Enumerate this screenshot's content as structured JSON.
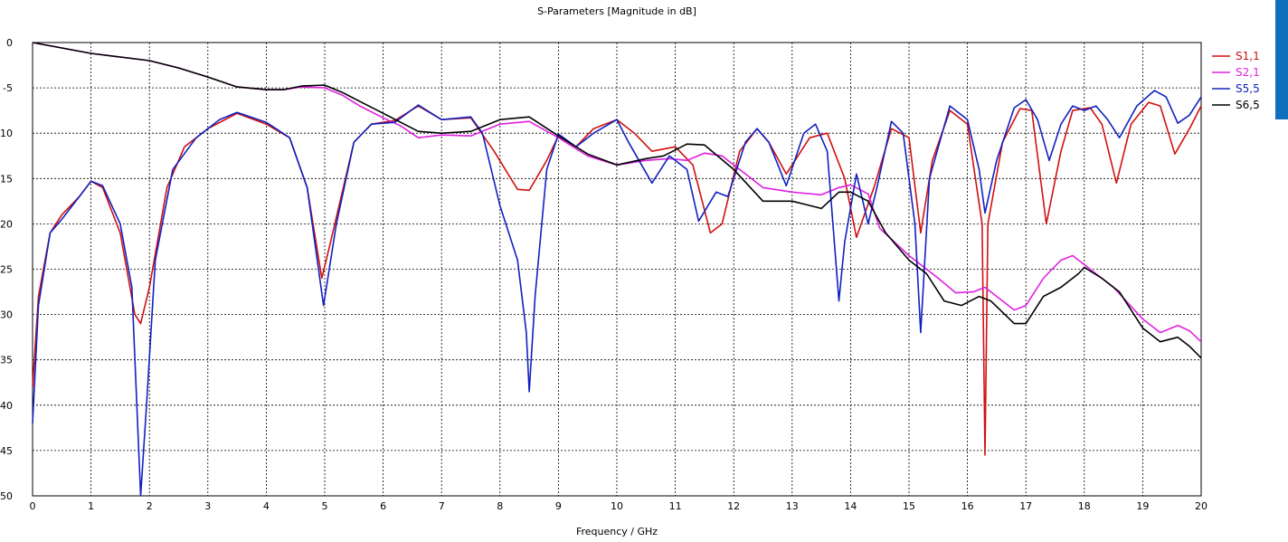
{
  "chart_data": {
    "type": "line",
    "title": "S-Parameters [Magnitude in dB]",
    "xlabel": "Frequency / GHz",
    "ylabel": "",
    "xlim": [
      0,
      20
    ],
    "ylim": [
      -50,
      0
    ],
    "xticks": [
      0,
      1,
      2,
      3,
      4,
      5,
      6,
      7,
      8,
      9,
      10,
      11,
      12,
      13,
      14,
      15,
      16,
      17,
      18,
      19,
      20
    ],
    "yticks": [
      0,
      -5,
      -10,
      -15,
      -20,
      -25,
      -30,
      -35,
      -40,
      -45,
      -50
    ],
    "grid": true,
    "legend_position": "top-right",
    "series": [
      {
        "name": "S1,1",
        "color": "#d01010",
        "points": [
          [
            0,
            -38
          ],
          [
            0.1,
            -28
          ],
          [
            0.3,
            -21
          ],
          [
            0.5,
            -19
          ],
          [
            0.8,
            -17
          ],
          [
            1.0,
            -15.3
          ],
          [
            1.2,
            -16
          ],
          [
            1.5,
            -21
          ],
          [
            1.75,
            -30
          ],
          [
            1.85,
            -31
          ],
          [
            2.0,
            -27
          ],
          [
            2.3,
            -16
          ],
          [
            2.6,
            -11.5
          ],
          [
            3.0,
            -9.5
          ],
          [
            3.5,
            -7.8
          ],
          [
            4.0,
            -9
          ],
          [
            4.4,
            -10.5
          ],
          [
            4.7,
            -16
          ],
          [
            4.95,
            -26
          ],
          [
            5.1,
            -22
          ],
          [
            5.5,
            -11
          ],
          [
            5.8,
            -9
          ],
          [
            6.2,
            -8.6
          ],
          [
            6.6,
            -7
          ],
          [
            7.0,
            -8.5
          ],
          [
            7.5,
            -8.3
          ],
          [
            7.9,
            -12
          ],
          [
            8.3,
            -16.2
          ],
          [
            8.5,
            -16.3
          ],
          [
            8.8,
            -13
          ],
          [
            9.0,
            -10.3
          ],
          [
            9.3,
            -11.5
          ],
          [
            9.6,
            -9.5
          ],
          [
            10.0,
            -8.5
          ],
          [
            10.3,
            -10
          ],
          [
            10.6,
            -12
          ],
          [
            11.0,
            -11.5
          ],
          [
            11.3,
            -13.5
          ],
          [
            11.6,
            -21
          ],
          [
            11.8,
            -20
          ],
          [
            12.1,
            -12
          ],
          [
            12.4,
            -9.5
          ],
          [
            12.6,
            -11
          ],
          [
            12.9,
            -14.5
          ],
          [
            13.3,
            -10.5
          ],
          [
            13.6,
            -10
          ],
          [
            13.9,
            -15
          ],
          [
            14.1,
            -21.5
          ],
          [
            14.4,
            -16
          ],
          [
            14.7,
            -9.5
          ],
          [
            15.0,
            -10.5
          ],
          [
            15.2,
            -21
          ],
          [
            15.4,
            -13
          ],
          [
            15.7,
            -7.5
          ],
          [
            16.0,
            -9
          ],
          [
            16.25,
            -20
          ],
          [
            16.3,
            -45.5
          ],
          [
            16.35,
            -20
          ],
          [
            16.6,
            -11
          ],
          [
            16.9,
            -7.3
          ],
          [
            17.1,
            -7.5
          ],
          [
            17.35,
            -20
          ],
          [
            17.6,
            -12
          ],
          [
            17.8,
            -7.5
          ],
          [
            18.1,
            -7.2
          ],
          [
            18.3,
            -9
          ],
          [
            18.55,
            -15.5
          ],
          [
            18.8,
            -9
          ],
          [
            19.1,
            -6.6
          ],
          [
            19.3,
            -7
          ],
          [
            19.55,
            -12.3
          ],
          [
            19.8,
            -9.5
          ],
          [
            20.0,
            -7
          ]
        ]
      },
      {
        "name": "S2,1",
        "color": "#e020e0",
        "points": [
          [
            0,
            0
          ],
          [
            0.5,
            -0.6
          ],
          [
            1.0,
            -1.2
          ],
          [
            1.5,
            -1.6
          ],
          [
            2.0,
            -2.0
          ],
          [
            2.5,
            -2.8
          ],
          [
            3.0,
            -3.8
          ],
          [
            3.5,
            -4.9
          ],
          [
            4.0,
            -5.2
          ],
          [
            4.3,
            -5.2
          ],
          [
            4.6,
            -4.9
          ],
          [
            5.0,
            -5.0
          ],
          [
            5.3,
            -5.8
          ],
          [
            5.6,
            -7.0
          ],
          [
            6.0,
            -8.3
          ],
          [
            6.3,
            -9.2
          ],
          [
            6.6,
            -10.5
          ],
          [
            7.0,
            -10.2
          ],
          [
            7.5,
            -10.3
          ],
          [
            8.0,
            -9.0
          ],
          [
            8.5,
            -8.7
          ],
          [
            9.0,
            -10.5
          ],
          [
            9.5,
            -12.5
          ],
          [
            10.0,
            -13.5
          ],
          [
            10.5,
            -13
          ],
          [
            10.9,
            -12.8
          ],
          [
            11.2,
            -13
          ],
          [
            11.5,
            -12.2
          ],
          [
            11.8,
            -12.5
          ],
          [
            12.2,
            -14.5
          ],
          [
            12.5,
            -16
          ],
          [
            13.0,
            -16.5
          ],
          [
            13.5,
            -16.8
          ],
          [
            13.8,
            -16
          ],
          [
            14.0,
            -15.7
          ],
          [
            14.3,
            -16.7
          ],
          [
            14.5,
            -20.5
          ],
          [
            15.0,
            -23.5
          ],
          [
            15.5,
            -26
          ],
          [
            15.8,
            -27.6
          ],
          [
            16.1,
            -27.5
          ],
          [
            16.3,
            -27
          ],
          [
            16.5,
            -28
          ],
          [
            16.8,
            -29.5
          ],
          [
            17.0,
            -29
          ],
          [
            17.3,
            -26
          ],
          [
            17.6,
            -24
          ],
          [
            17.8,
            -23.5
          ],
          [
            18.0,
            -24.5
          ],
          [
            18.5,
            -27
          ],
          [
            19.0,
            -30.5
          ],
          [
            19.3,
            -32
          ],
          [
            19.6,
            -31.2
          ],
          [
            19.8,
            -31.8
          ],
          [
            20.0,
            -33
          ]
        ]
      },
      {
        "name": "S5,5",
        "color": "#1020c0",
        "points": [
          [
            0,
            -42
          ],
          [
            0.1,
            -29
          ],
          [
            0.3,
            -21
          ],
          [
            0.5,
            -19.5
          ],
          [
            0.8,
            -17
          ],
          [
            1.0,
            -15.3
          ],
          [
            1.2,
            -15.8
          ],
          [
            1.5,
            -20
          ],
          [
            1.7,
            -27
          ],
          [
            1.85,
            -50
          ],
          [
            1.95,
            -40
          ],
          [
            2.1,
            -24
          ],
          [
            2.4,
            -14
          ],
          [
            2.8,
            -10.5
          ],
          [
            3.2,
            -8.5
          ],
          [
            3.5,
            -7.7
          ],
          [
            4.0,
            -8.8
          ],
          [
            4.4,
            -10.5
          ],
          [
            4.7,
            -16
          ],
          [
            4.98,
            -29
          ],
          [
            5.2,
            -20
          ],
          [
            5.5,
            -11
          ],
          [
            5.8,
            -9
          ],
          [
            6.2,
            -8.8
          ],
          [
            6.6,
            -6.9
          ],
          [
            7.0,
            -8.5
          ],
          [
            7.5,
            -8.2
          ],
          [
            7.7,
            -10
          ],
          [
            8.0,
            -18
          ],
          [
            8.3,
            -24
          ],
          [
            8.45,
            -32
          ],
          [
            8.5,
            -38.5
          ],
          [
            8.6,
            -28
          ],
          [
            8.8,
            -14
          ],
          [
            9.0,
            -10.1
          ],
          [
            9.3,
            -11.5
          ],
          [
            9.6,
            -10
          ],
          [
            10.0,
            -8.5
          ],
          [
            10.2,
            -11
          ],
          [
            10.6,
            -15.5
          ],
          [
            10.9,
            -12.5
          ],
          [
            11.2,
            -14
          ],
          [
            11.4,
            -19.7
          ],
          [
            11.7,
            -16.5
          ],
          [
            11.9,
            -17
          ],
          [
            12.2,
            -11
          ],
          [
            12.4,
            -9.5
          ],
          [
            12.6,
            -11
          ],
          [
            12.9,
            -15.8
          ],
          [
            13.2,
            -10
          ],
          [
            13.4,
            -9
          ],
          [
            13.6,
            -12
          ],
          [
            13.8,
            -28.5
          ],
          [
            13.9,
            -22
          ],
          [
            14.1,
            -14.5
          ],
          [
            14.3,
            -20
          ],
          [
            14.45,
            -16
          ],
          [
            14.7,
            -8.7
          ],
          [
            14.9,
            -10
          ],
          [
            15.1,
            -20
          ],
          [
            15.2,
            -32
          ],
          [
            15.35,
            -15
          ],
          [
            15.7,
            -7
          ],
          [
            16.0,
            -8.5
          ],
          [
            16.2,
            -14
          ],
          [
            16.3,
            -18.8
          ],
          [
            16.5,
            -13
          ],
          [
            16.8,
            -7.2
          ],
          [
            17.0,
            -6.3
          ],
          [
            17.2,
            -8.5
          ],
          [
            17.4,
            -13
          ],
          [
            17.6,
            -9
          ],
          [
            17.8,
            -7
          ],
          [
            18.0,
            -7.5
          ],
          [
            18.2,
            -7
          ],
          [
            18.4,
            -8.5
          ],
          [
            18.6,
            -10.5
          ],
          [
            18.9,
            -7
          ],
          [
            19.2,
            -5.3
          ],
          [
            19.4,
            -6
          ],
          [
            19.6,
            -8.9
          ],
          [
            19.8,
            -8
          ],
          [
            20.0,
            -6
          ]
        ]
      },
      {
        "name": "S6,5",
        "color": "#000000",
        "points": [
          [
            0,
            0
          ],
          [
            0.5,
            -0.6
          ],
          [
            1.0,
            -1.2
          ],
          [
            1.5,
            -1.6
          ],
          [
            2.0,
            -2.0
          ],
          [
            2.5,
            -2.8
          ],
          [
            3.0,
            -3.8
          ],
          [
            3.5,
            -4.9
          ],
          [
            4.0,
            -5.2
          ],
          [
            4.3,
            -5.2
          ],
          [
            4.6,
            -4.8
          ],
          [
            5.0,
            -4.7
          ],
          [
            5.3,
            -5.5
          ],
          [
            5.6,
            -6.5
          ],
          [
            6.0,
            -7.8
          ],
          [
            6.3,
            -8.8
          ],
          [
            6.6,
            -9.8
          ],
          [
            7.0,
            -10
          ],
          [
            7.5,
            -9.8
          ],
          [
            8.0,
            -8.5
          ],
          [
            8.5,
            -8.2
          ],
          [
            9.0,
            -10.3
          ],
          [
            9.5,
            -12.3
          ],
          [
            10.0,
            -13.5
          ],
          [
            10.5,
            -12.8
          ],
          [
            10.8,
            -12.5
          ],
          [
            11.2,
            -11.2
          ],
          [
            11.5,
            -11.3
          ],
          [
            12.0,
            -14
          ],
          [
            12.5,
            -17.5
          ],
          [
            13.0,
            -17.5
          ],
          [
            13.5,
            -18.3
          ],
          [
            13.8,
            -16.5
          ],
          [
            14.0,
            -16.5
          ],
          [
            14.3,
            -17.5
          ],
          [
            14.6,
            -21
          ],
          [
            15.0,
            -24
          ],
          [
            15.3,
            -25.5
          ],
          [
            15.6,
            -28.5
          ],
          [
            15.9,
            -29
          ],
          [
            16.2,
            -28
          ],
          [
            16.4,
            -28.5
          ],
          [
            16.8,
            -31
          ],
          [
            17.0,
            -31
          ],
          [
            17.3,
            -28
          ],
          [
            17.6,
            -27
          ],
          [
            17.9,
            -25.5
          ],
          [
            18.0,
            -24.8
          ],
          [
            18.3,
            -26
          ],
          [
            18.6,
            -27.5
          ],
          [
            19.0,
            -31.5
          ],
          [
            19.3,
            -33
          ],
          [
            19.6,
            -32.5
          ],
          [
            19.8,
            -33.5
          ],
          [
            20.0,
            -34.8
          ]
        ]
      }
    ]
  }
}
